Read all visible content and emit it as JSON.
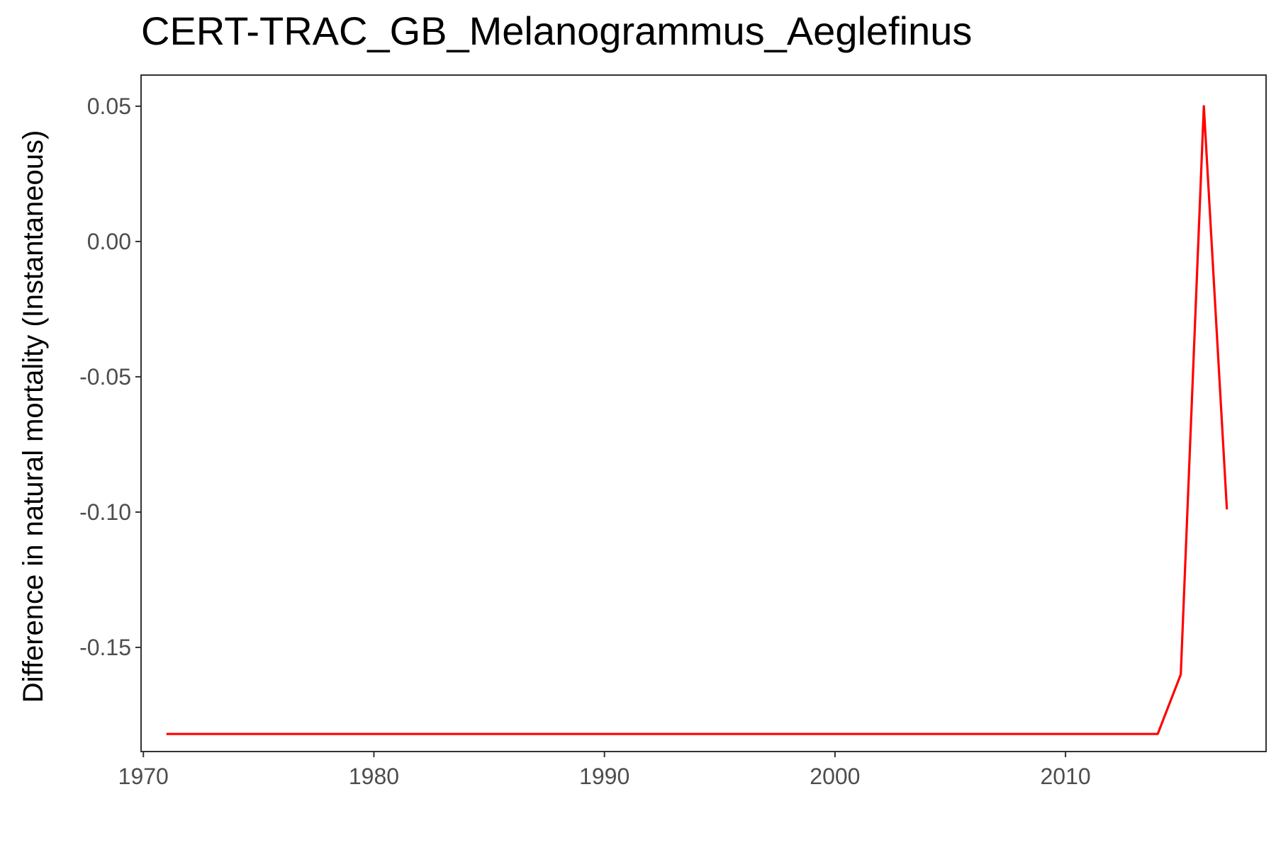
{
  "chart_data": {
    "type": "line",
    "title": "CERT-TRAC_GB_Melanogrammus_Aeglefinus",
    "xlabel": "",
    "ylabel": "Difference in natural mortality (Instantaneous)",
    "xlim": [
      1969.9,
      2018.7
    ],
    "ylim": [
      -0.1885,
      0.0615
    ],
    "x_ticks": [
      1970,
      1980,
      1990,
      2000,
      2010
    ],
    "x_tick_labels": [
      "1970",
      "1980",
      "1990",
      "2000",
      "2010"
    ],
    "y_ticks": [
      0.05,
      0.0,
      -0.05,
      -0.1,
      -0.15
    ],
    "y_tick_labels": [
      "0.05",
      "0.00",
      "-0.05",
      "-0.10",
      "-0.15"
    ],
    "grid": false,
    "series": [
      {
        "color": "#ff0000",
        "x": [
          1971,
          1972,
          1973,
          1974,
          1975,
          1976,
          1977,
          1978,
          1979,
          1980,
          1981,
          1982,
          1983,
          1984,
          1985,
          1986,
          1987,
          1988,
          1989,
          1990,
          1991,
          1992,
          1993,
          1994,
          1995,
          1996,
          1997,
          1998,
          1999,
          2000,
          2001,
          2002,
          2003,
          2004,
          2005,
          2006,
          2007,
          2008,
          2009,
          2010,
          2011,
          2012,
          2013,
          2014,
          2015,
          2016,
          2017
        ],
        "y": [
          -0.182,
          -0.182,
          -0.182,
          -0.182,
          -0.182,
          -0.182,
          -0.182,
          -0.182,
          -0.182,
          -0.182,
          -0.182,
          -0.182,
          -0.182,
          -0.182,
          -0.182,
          -0.182,
          -0.182,
          -0.182,
          -0.182,
          -0.182,
          -0.182,
          -0.182,
          -0.182,
          -0.182,
          -0.182,
          -0.182,
          -0.182,
          -0.182,
          -0.182,
          -0.182,
          -0.182,
          -0.182,
          -0.182,
          -0.182,
          -0.182,
          -0.182,
          -0.182,
          -0.182,
          -0.182,
          -0.182,
          -0.182,
          -0.182,
          -0.182,
          -0.182,
          -0.16,
          0.05,
          -0.099
        ]
      }
    ]
  }
}
